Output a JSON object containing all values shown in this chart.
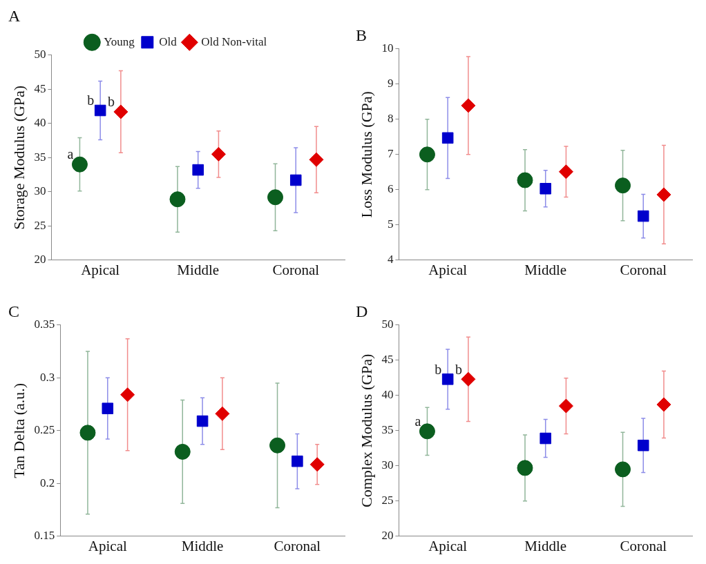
{
  "chart_data": [
    {
      "type": "scatter",
      "title": "A",
      "ylabel": "Storage Modulus (GPa)",
      "categories": [
        "Apical",
        "Middle",
        "Coronal"
      ],
      "legend": "top",
      "ylim": [
        20,
        50
      ],
      "yticks": [
        20,
        25,
        30,
        35,
        40,
        45,
        50
      ],
      "series": [
        {
          "name": "Young",
          "color": "#0b5e1f",
          "marker": "circle",
          "values": [
            34,
            28.9,
            29.2
          ],
          "errors": [
            3.9,
            4.8,
            4.9
          ]
        },
        {
          "name": "Old",
          "color": "#0000cc",
          "marker": "square",
          "values": [
            41.9,
            33.2,
            31.7
          ],
          "errors": [
            4.3,
            2.7,
            4.75
          ]
        },
        {
          "name": "Old Non-vital",
          "color": "#e00000",
          "marker": "diamond",
          "values": [
            41.7,
            35.5,
            34.7
          ],
          "errors": [
            6,
            3.4,
            4.85
          ]
        }
      ],
      "annotations": [
        "a",
        {
          "text": "b",
          "x": "Apical",
          "y": 41.9
        },
        {
          "text": "b",
          "x": "Apical",
          "y": 41.7
        }
      ]
    },
    {
      "type": "scatter",
      "title": "B",
      "ylabel": "Loss Modulus (GPa)",
      "categories": [
        "Apical",
        "Middle",
        "Coronal"
      ],
      "ylim": [
        4,
        10
      ],
      "yticks": [
        4,
        5,
        6,
        7,
        8,
        9,
        10
      ],
      "series": [
        {
          "color": "#0b5e1f",
          "marker": "circle",
          "values": [
            7.0,
            6.27,
            6.12
          ],
          "errors": [
            1.0,
            0.87,
            1.0
          ]
        },
        {
          "color": "#0000cc",
          "marker": "square",
          "values": [
            7.47,
            6.03,
            5.25
          ],
          "errors": [
            1.15,
            0.52,
            0.62
          ]
        },
        {
          "color": "#e00000",
          "marker": "diamond",
          "values": [
            8.39,
            6.51,
            5.86
          ],
          "errors": [
            1.39,
            0.72,
            1.4
          ]
        }
      ]
    },
    {
      "type": "scatter",
      "title": "C",
      "ylabel": "Tan Delta (a.u.)",
      "categories": [
        "Apical",
        "Middle",
        "Coronal"
      ],
      "ylim": [
        0.15,
        0.35
      ],
      "yticks": [
        0.15,
        0.2,
        0.25,
        0.3,
        0.35
      ],
      "series": [
        {
          "color": "#0b5e1f",
          "marker": "circle",
          "values": [
            0.248,
            0.23,
            0.236
          ],
          "errors": [
            0.077,
            0.049,
            0.059
          ]
        },
        {
          "color": "#0000cc",
          "marker": "square",
          "values": [
            0.271,
            0.259,
            0.221
          ],
          "errors": [
            0.029,
            0.022,
            0.026
          ]
        },
        {
          "color": "#e00000",
          "marker": "diamond",
          "values": [
            0.284,
            0.266,
            0.218
          ],
          "errors": [
            0.053,
            0.034,
            0.019
          ]
        }
      ]
    },
    {
      "type": "scatter",
      "title": "D",
      "ylabel": "Complex Modulus (GPa)",
      "categories": [
        "Apical",
        "Middle",
        "Coronal"
      ],
      "ylim": [
        20,
        50
      ],
      "yticks": [
        20,
        25,
        30,
        35,
        40,
        45,
        50
      ],
      "series": [
        {
          "color": "#0b5e1f",
          "marker": "circle",
          "values": [
            34.9,
            29.7,
            29.5
          ],
          "errors": [
            3.4,
            4.7,
            5.25
          ]
        },
        {
          "color": "#0000cc",
          "marker": "square",
          "values": [
            42.3,
            33.9,
            32.9
          ],
          "errors": [
            4.25,
            2.7,
            3.85
          ]
        },
        {
          "color": "#e00000",
          "marker": "diamond",
          "values": [
            42.3,
            38.5,
            38.7
          ],
          "errors": [
            6,
            3.95,
            4.75
          ]
        }
      ],
      "annotations": [
        "a",
        {
          "text": "b",
          "x": "Apical",
          "y": 42.3
        },
        {
          "text": "b",
          "x": "Apical",
          "y": 42.3
        }
      ]
    }
  ]
}
